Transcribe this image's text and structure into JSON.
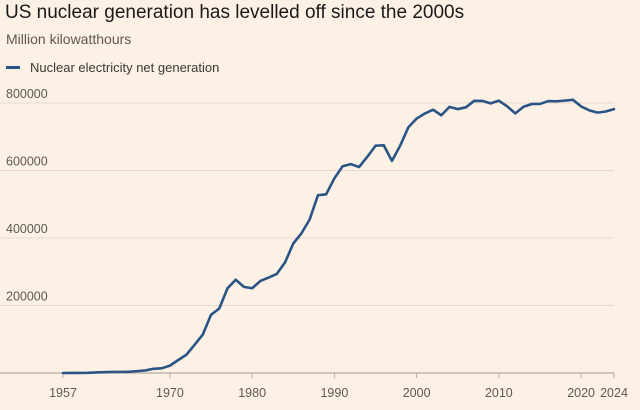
{
  "header": {
    "title": "US nuclear generation has levelled off since the 2000s",
    "subtitle": "Million kilowatthours"
  },
  "legend": {
    "series_label": "Nuclear electricity net generation"
  },
  "colors": {
    "background": "#fdf1e6",
    "series": "#2a5485",
    "gridline": "#e6d9cc",
    "baseline": "#b7aca1",
    "text": "#5c5853"
  },
  "chart_data": {
    "type": "line",
    "title": "US nuclear generation has levelled off since the 2000s",
    "ylabel": "Million kilowatthours",
    "xlabel": "",
    "xlim": [
      1957,
      2024
    ],
    "ylim": [
      0,
      850000
    ],
    "x_ticks": [
      1957,
      1970,
      1980,
      1990,
      2000,
      2010,
      2020,
      2024
    ],
    "y_ticks": [
      200000,
      400000,
      600000,
      800000
    ],
    "y_tick_labels": [
      "200000",
      "400000",
      "600000",
      "800000"
    ],
    "grid": true,
    "legend_position": "top-left",
    "series": [
      {
        "name": "Nuclear electricity net generation",
        "x": [
          1957,
          1958,
          1959,
          1960,
          1961,
          1962,
          1963,
          1964,
          1965,
          1966,
          1967,
          1968,
          1969,
          1970,
          1971,
          1972,
          1973,
          1974,
          1975,
          1976,
          1977,
          1978,
          1979,
          1980,
          1981,
          1982,
          1983,
          1984,
          1985,
          1986,
          1987,
          1988,
          1989,
          1990,
          1991,
          1992,
          1993,
          1994,
          1995,
          1996,
          1997,
          1998,
          1999,
          2000,
          2001,
          2002,
          2003,
          2004,
          2005,
          2006,
          2007,
          2008,
          2009,
          2010,
          2011,
          2012,
          2013,
          2014,
          2015,
          2016,
          2017,
          2018,
          2019,
          2020,
          2021,
          2022,
          2023,
          2024
        ],
        "values": [
          10,
          165,
          188,
          518,
          1692,
          2270,
          3212,
          3343,
          3657,
          5520,
          7655,
          12528,
          13928,
          21804,
          38105,
          54091,
          83479,
          113976,
          172505,
          191104,
          250883,
          276403,
          255155,
          251116,
          272674,
          282773,
          293677,
          327634,
          383691,
          414038,
          455270,
          526973,
          529355,
          576862,
          612565,
          618776,
          610291,
          640440,
          673402,
          674729,
          628644,
          673702,
          728254,
          753893,
          768826,
          780064,
          763733,
          788528,
          781986,
          787219,
          806425,
          806208,
          798855,
          806968,
          790204,
          769331,
          789016,
          797166,
          797178,
          805694,
          804950,
          807084,
          809409,
          789879,
          778152,
          771537,
          774873,
          782000
        ]
      }
    ]
  }
}
